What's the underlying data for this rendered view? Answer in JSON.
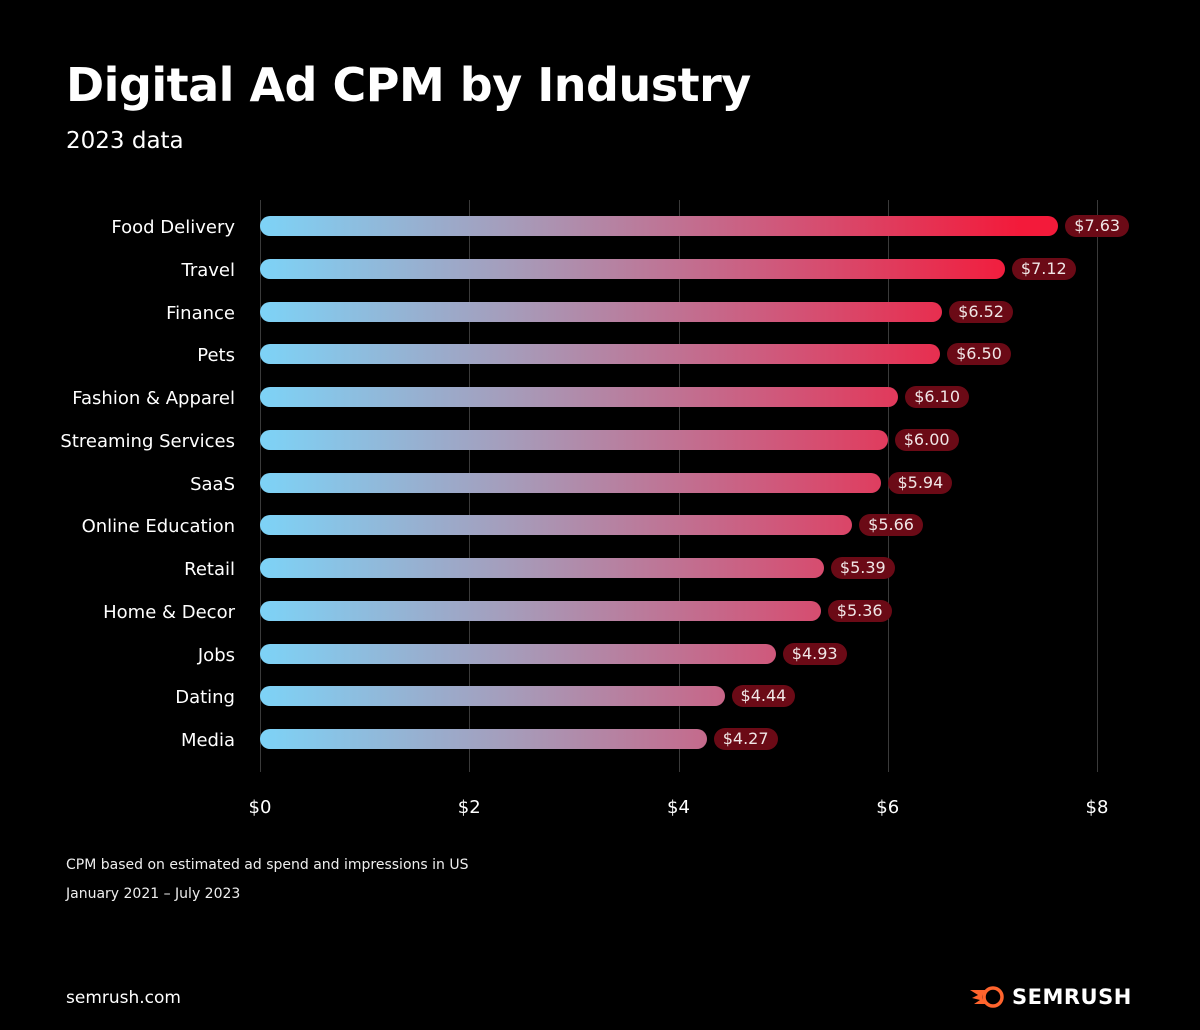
{
  "chart_data": {
    "type": "bar",
    "orientation": "horizontal",
    "title": "Digital Ad CPM by Industry",
    "subtitle": "2023 data",
    "categories": [
      "Food Delivery",
      "Travel",
      "Finance",
      "Pets",
      "Fashion & Apparel",
      "Streaming Services",
      "SaaS",
      "Online Education",
      "Retail",
      "Home & Decor",
      "Jobs",
      "Dating",
      "Media"
    ],
    "values": [
      7.63,
      7.12,
      6.52,
      6.5,
      6.1,
      6.0,
      5.94,
      5.66,
      5.39,
      5.36,
      4.93,
      4.44,
      4.27
    ],
    "value_labels": [
      "$7.63",
      "$7.12",
      "$6.52",
      "$6.50",
      "$6.10",
      "$6.00",
      "$5.94",
      "$5.66",
      "$5.39",
      "$5.36",
      "$4.93",
      "$4.44",
      "$4.27"
    ],
    "xlim": [
      0,
      8
    ],
    "xticks": [
      0,
      2,
      4,
      6,
      8
    ],
    "xtick_labels": [
      "$0",
      "$2",
      "$4",
      "$6",
      "$8"
    ],
    "grid": "vertical",
    "colors": {
      "gradient_start": "#7dd3f7",
      "gradient_end": "#f31a3a",
      "label_bg": "#6b0a16",
      "background": "#000000"
    }
  },
  "footnotes": [
    "CPM based on estimated ad spend and impressions in US",
    "January 2021 – July 2023"
  ],
  "footer": {
    "site": "semrush.com",
    "logo_text": "SEMRUSH",
    "logo_color": "#ff642d"
  }
}
